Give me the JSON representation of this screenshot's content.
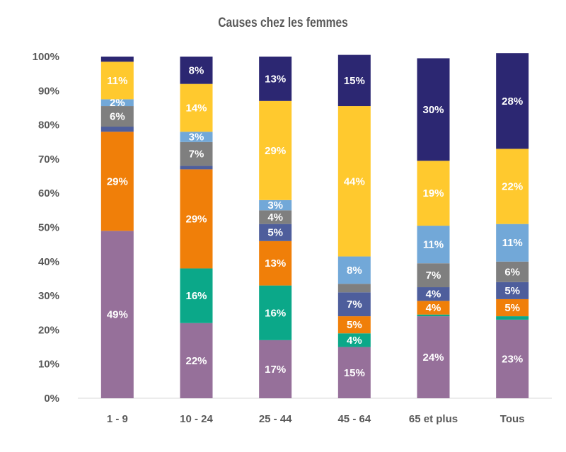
{
  "chart_data": {
    "type": "bar",
    "stacked": true,
    "title": "Causes chez les femmes",
    "xlabel": "",
    "ylabel": "",
    "ylim": [
      0,
      100
    ],
    "y_ticks": [
      "0%",
      "10%",
      "20%",
      "30%",
      "40%",
      "50%",
      "60%",
      "70%",
      "80%",
      "90%",
      "100%"
    ],
    "grid": false,
    "legend": "none",
    "categories": [
      "1 - 9",
      "10 - 24",
      "25 - 44",
      "45 - 64",
      "65 et plus",
      "Tous"
    ],
    "series": [
      {
        "color": "#96709A",
        "values": [
          49,
          22,
          17,
          15,
          24,
          23
        ],
        "labels": [
          "49%",
          "22%",
          "17%",
          "15%",
          "24%",
          "23%"
        ]
      },
      {
        "color": "#0BA889",
        "values": [
          0,
          16,
          16,
          4,
          0.5,
          1
        ],
        "labels": [
          "",
          "16%",
          "16%",
          "4%",
          "",
          ""
        ]
      },
      {
        "color": "#F07F09",
        "values": [
          29,
          29,
          13,
          5,
          4,
          5
        ],
        "labels": [
          "29%",
          "29%",
          "13%",
          "5%",
          "4%",
          "5%"
        ]
      },
      {
        "color": "#4E5E9C",
        "values": [
          1.5,
          1,
          5,
          7,
          4,
          5
        ],
        "labels": [
          "",
          "",
          "5%",
          "7%",
          "4%",
          "5%"
        ]
      },
      {
        "color": "#7F7F7F",
        "values": [
          6,
          7,
          4,
          2.5,
          7,
          6
        ],
        "labels": [
          "6%",
          "7%",
          "4%",
          "",
          "7%",
          "6%"
        ]
      },
      {
        "color": "#72A8D8",
        "values": [
          2,
          3,
          3,
          8,
          11,
          11
        ],
        "labels": [
          "2%",
          "3%",
          "3%",
          "8%",
          "11%",
          "11%"
        ]
      },
      {
        "color": "#FFC92E",
        "values": [
          11,
          14,
          29,
          44,
          19,
          22
        ],
        "labels": [
          "11%",
          "14%",
          "29%",
          "44%",
          "19%",
          "22%"
        ]
      },
      {
        "color": "#2C2772",
        "values": [
          1.5,
          8,
          13,
          15,
          30,
          28
        ],
        "labels": [
          "",
          "8%",
          "13%",
          "15%",
          "30%",
          "28%"
        ]
      }
    ]
  }
}
